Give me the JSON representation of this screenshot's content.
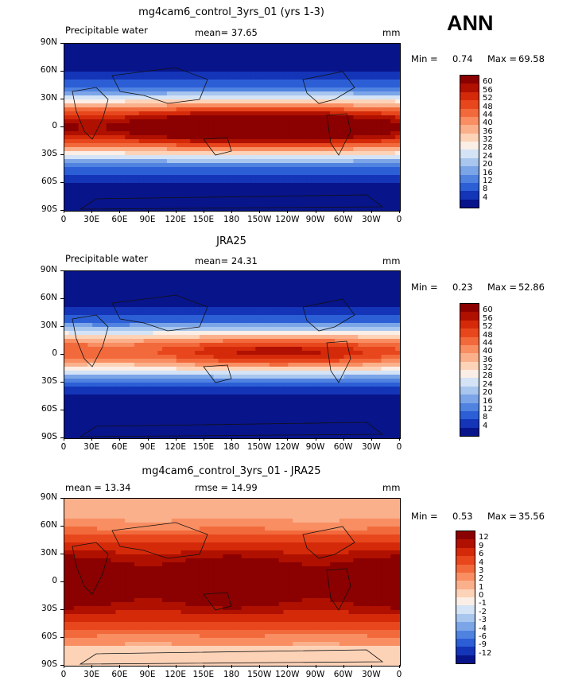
{
  "season": "ANN",
  "x_ticks": [
    "0",
    "30E",
    "60E",
    "90E",
    "120E",
    "150E",
    "180",
    "150W",
    "120W",
    "90W",
    "60W",
    "30W",
    "0"
  ],
  "y_ticks": [
    "90N",
    "60N",
    "30N",
    "0",
    "30S",
    "60S",
    "90S"
  ],
  "panels": [
    {
      "title": "mg4cam6_control_3yrs_01 (yrs 1-3)",
      "left_label": "Precipitable water",
      "stat1": "mean=  37.65",
      "stat2": "",
      "units": "mm",
      "min_label": "Min =",
      "min_value": "0.74",
      "max_label": "Max =",
      "max_value": "69.58"
    },
    {
      "title": "JRA25",
      "left_label": "Precipitable water",
      "stat1": "mean=  24.31",
      "stat2": "",
      "units": "mm",
      "min_label": "Min =",
      "min_value": "0.23",
      "max_label": "Max =",
      "max_value": "52.86"
    },
    {
      "title": "mg4cam6_control_3yrs_01 - JRA25",
      "left_label": "",
      "stat1": "mean =   13.34",
      "stat2": "rmse =   14.99",
      "units": "mm",
      "min_label": "Min =",
      "min_value": "0.53",
      "max_label": "Max =",
      "max_value": "35.56"
    }
  ],
  "colorbar_field": {
    "labels": [
      "60",
      "56",
      "52",
      "48",
      "44",
      "40",
      "36",
      "32",
      "28",
      "24",
      "20",
      "16",
      "12",
      "8",
      "4"
    ],
    "colors": [
      "#8b0000",
      "#b01000",
      "#d42a0a",
      "#e8471d",
      "#f26a3c",
      "#f88e62",
      "#fbb08c",
      "#fdd3b8",
      "#fbeee6",
      "#d4e3f5",
      "#a8c6ee",
      "#7ca5e8",
      "#5082e0",
      "#2c5fd6",
      "#1435b8",
      "#08148a"
    ]
  },
  "colorbar_diff": {
    "labels": [
      "12",
      "9",
      "6",
      "4",
      "3",
      "2",
      "1",
      "0",
      "-1",
      "-2",
      "-3",
      "-4",
      "-6",
      "-9",
      "-12"
    ],
    "colors": [
      "#8b0000",
      "#b01000",
      "#d42a0a",
      "#e8471d",
      "#f26a3c",
      "#f88e62",
      "#fbb08c",
      "#fdd3b8",
      "#fbeee6",
      "#d4e3f5",
      "#a8c6ee",
      "#7ca5e8",
      "#5082e0",
      "#2c5fd6",
      "#1435b8",
      "#08148a"
    ]
  },
  "chart_data": [
    {
      "type": "heatmap",
      "title": "mg4cam6_control_3yrs_01 (yrs 1-3)",
      "variable": "Precipitable water",
      "units": "mm",
      "mean": 37.65,
      "min": 0.74,
      "max": 69.58,
      "xlim": [
        "0",
        "0"
      ],
      "ylim": [
        "90S",
        "90N"
      ],
      "contour_levels": [
        4,
        8,
        12,
        16,
        20,
        24,
        28,
        32,
        36,
        40,
        44,
        48,
        52,
        56,
        60
      ]
    },
    {
      "type": "heatmap",
      "title": "JRA25",
      "variable": "Precipitable water",
      "units": "mm",
      "mean": 24.31,
      "min": 0.23,
      "max": 52.86,
      "xlim": [
        "0",
        "0"
      ],
      "ylim": [
        "90S",
        "90N"
      ],
      "contour_levels": [
        4,
        8,
        12,
        16,
        20,
        24,
        28,
        32,
        36,
        40,
        44,
        48,
        52,
        56,
        60
      ]
    },
    {
      "type": "heatmap",
      "title": "mg4cam6_control_3yrs_01 - JRA25",
      "units": "mm",
      "mean": 13.34,
      "rmse": 14.99,
      "min": 0.53,
      "max": 35.56,
      "xlim": [
        "0",
        "0"
      ],
      "ylim": [
        "90S",
        "90N"
      ],
      "contour_levels": [
        -12,
        -9,
        -6,
        -4,
        -3,
        -2,
        -1,
        0,
        1,
        2,
        3,
        4,
        6,
        9,
        12
      ]
    }
  ]
}
